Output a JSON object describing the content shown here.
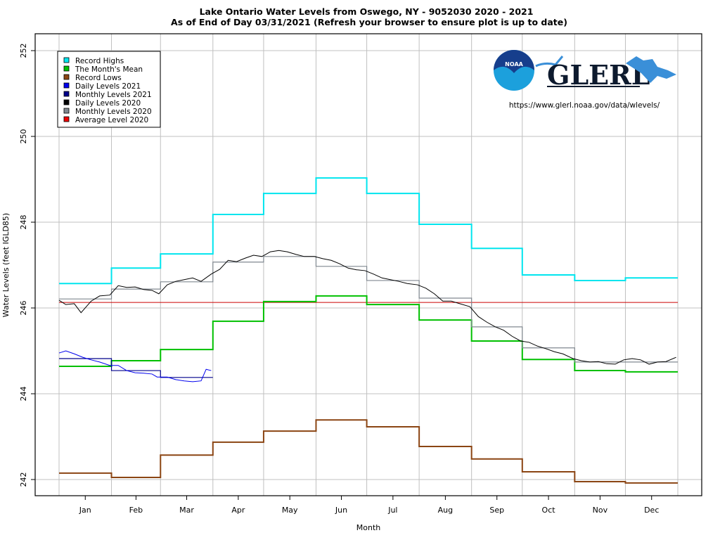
{
  "chart_data": {
    "type": "line",
    "title": "Lake Ontario Water Levels from Oswego, NY - 9052030 2020 - 2021",
    "subtitle": "As of End of Day 03/31/2021 (Refresh your browser to ensure plot is up to date)",
    "xlabel": "Month",
    "ylabel": "Water Levels (feet IGLD85)",
    "ylim": [
      241.6,
      252.8
    ],
    "yticks": [
      242,
      244,
      246,
      248,
      250,
      252
    ],
    "categories": [
      "Jan",
      "Feb",
      "Mar",
      "Apr",
      "May",
      "Jun",
      "Jul",
      "Aug",
      "Sep",
      "Oct",
      "Nov",
      "Dec"
    ],
    "grid": true,
    "legend_position": "top-left",
    "url_text": "https://www.glerl.noaa.gov/data/wlevels/",
    "logo_text": "GLERL",
    "noaa_text": "NOAA",
    "monthly_series": [
      {
        "name": "Record Highs",
        "color": "#00e5ee",
        "values": [
          246.57,
          246.93,
          247.26,
          248.18,
          248.67,
          249.03,
          248.67,
          247.95,
          247.39,
          246.77,
          246.64,
          246.7
        ]
      },
      {
        "name": "The Month's Mean",
        "color": "#00c000",
        "values": [
          244.64,
          244.77,
          245.03,
          245.69,
          246.15,
          246.28,
          246.08,
          245.72,
          245.23,
          244.8,
          244.54,
          244.51
        ]
      },
      {
        "name": "Record Lows",
        "color": "#8b4513",
        "values": [
          242.15,
          242.05,
          242.57,
          242.87,
          243.13,
          243.39,
          243.23,
          242.77,
          242.48,
          242.18,
          241.95,
          241.92
        ]
      },
      {
        "name": "Monthly Levels 2021",
        "color": "#00008b",
        "values": [
          244.82,
          244.54,
          244.38
        ]
      },
      {
        "name": "Monthly Levels 2020",
        "color": "#808890",
        "values": [
          246.21,
          246.44,
          246.61,
          247.07,
          247.2,
          246.97,
          246.64,
          246.23,
          245.56,
          245.07,
          244.74,
          244.74
        ]
      }
    ],
    "daily_series": [
      {
        "name": "Daily Levels 2021",
        "color": "#0000ee",
        "year": 2021,
        "dates": [
          "2021-01-01",
          "2021-01-05",
          "2021-01-10",
          "2021-01-15",
          "2021-01-20",
          "2021-01-25",
          "2021-01-31",
          "2021-02-05",
          "2021-02-10",
          "2021-02-15",
          "2021-02-20",
          "2021-02-25",
          "2021-02-28",
          "2021-03-05",
          "2021-03-10",
          "2021-03-15",
          "2021-03-20",
          "2021-03-25",
          "2021-03-28",
          "2021-03-31"
        ],
        "values": [
          244.95,
          245.0,
          244.93,
          244.85,
          244.79,
          244.74,
          244.66,
          244.66,
          244.54,
          244.49,
          244.48,
          244.46,
          244.39,
          244.39,
          244.33,
          244.3,
          244.28,
          244.3,
          244.57,
          244.54
        ]
      },
      {
        "name": "Daily Levels 2020",
        "color": "#000000",
        "year": 2020,
        "dates": [
          "2020-01-01",
          "2020-01-05",
          "2020-01-10",
          "2020-01-14",
          "2020-01-20",
          "2020-01-25",
          "2020-01-31",
          "2020-02-05",
          "2020-02-10",
          "2020-02-15",
          "2020-02-20",
          "2020-02-25",
          "2020-02-29",
          "2020-03-05",
          "2020-03-10",
          "2020-03-15",
          "2020-03-20",
          "2020-03-25",
          "2020-03-31",
          "2020-04-05",
          "2020-04-10",
          "2020-04-15",
          "2020-04-20",
          "2020-04-25",
          "2020-04-30",
          "2020-05-05",
          "2020-05-10",
          "2020-05-15",
          "2020-05-20",
          "2020-05-25",
          "2020-05-31",
          "2020-06-05",
          "2020-06-10",
          "2020-06-15",
          "2020-06-20",
          "2020-06-25",
          "2020-06-30",
          "2020-07-05",
          "2020-07-10",
          "2020-07-15",
          "2020-07-20",
          "2020-07-25",
          "2020-07-31",
          "2020-08-05",
          "2020-08-10",
          "2020-08-15",
          "2020-08-20",
          "2020-08-25",
          "2020-08-31",
          "2020-09-05",
          "2020-09-10",
          "2020-09-15",
          "2020-09-20",
          "2020-09-25",
          "2020-09-30",
          "2020-10-05",
          "2020-10-10",
          "2020-10-15",
          "2020-10-20",
          "2020-10-25",
          "2020-10-31",
          "2020-11-05",
          "2020-11-10",
          "2020-11-15",
          "2020-11-20",
          "2020-11-25",
          "2020-11-30",
          "2020-12-05",
          "2020-12-10",
          "2020-12-15",
          "2020-12-20",
          "2020-12-25",
          "2020-12-31"
        ],
        "values": [
          246.18,
          246.08,
          246.1,
          245.89,
          246.16,
          246.28,
          246.3,
          246.52,
          246.48,
          246.49,
          246.43,
          246.41,
          246.33,
          246.54,
          246.62,
          246.66,
          246.7,
          246.62,
          246.79,
          246.9,
          247.11,
          247.08,
          247.16,
          247.23,
          247.2,
          247.31,
          247.34,
          247.31,
          247.25,
          247.2,
          247.2,
          247.15,
          247.11,
          247.03,
          246.93,
          246.89,
          246.87,
          246.79,
          246.7,
          246.66,
          246.62,
          246.57,
          246.54,
          246.46,
          246.33,
          246.16,
          246.16,
          246.1,
          246.03,
          245.8,
          245.67,
          245.56,
          245.48,
          245.34,
          245.23,
          245.2,
          245.11,
          245.05,
          244.98,
          244.93,
          244.82,
          244.77,
          244.74,
          244.75,
          244.7,
          244.69,
          244.79,
          244.82,
          244.79,
          244.69,
          244.74,
          244.75,
          244.85
        ]
      }
    ],
    "average_level": {
      "name": "Average Level 2020",
      "color": "#dd0000",
      "value": 246.13
    },
    "legend": [
      {
        "label": "Record Highs",
        "color": "#00e5ee"
      },
      {
        "label": "The Month's Mean",
        "color": "#00c000"
      },
      {
        "label": "Record Lows",
        "color": "#8b4513"
      },
      {
        "label": "Daily Levels 2021",
        "color": "#0000ee"
      },
      {
        "label": "Monthly Levels 2021",
        "color": "#00008b"
      },
      {
        "label": "Daily Levels 2020",
        "color": "#000000"
      },
      {
        "label": "Monthly Levels 2020",
        "color": "#808890"
      },
      {
        "label": "Average Level 2020",
        "color": "#ee0000"
      }
    ]
  }
}
